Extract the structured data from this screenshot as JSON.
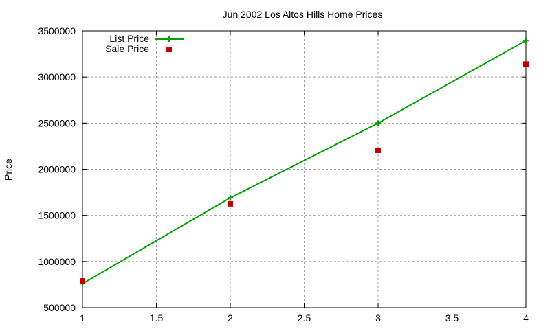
{
  "chart_data": {
    "type": "line",
    "title": "Jun 2002 Los Altos Hills Home Prices",
    "xlabel": "",
    "ylabel": "Price",
    "x": [
      1,
      2,
      3,
      4
    ],
    "xlim": [
      1,
      4
    ],
    "ylim": [
      500000,
      3500000
    ],
    "xticks": [
      "1",
      "1.5",
      "2",
      "2.5",
      "3",
      "3.5",
      "4"
    ],
    "yticks": [
      "500000",
      "1000000",
      "1500000",
      "2000000",
      "2500000",
      "3000000",
      "3500000"
    ],
    "grid": true,
    "legend_position": "top-left",
    "series": [
      {
        "name": "List Price",
        "style": "line+cross",
        "color": "#00a000",
        "values": [
          760000,
          1690000,
          2500000,
          3395000
        ]
      },
      {
        "name": "Sale Price",
        "style": "square-markers",
        "color": "#c00000",
        "values": [
          790000,
          1625000,
          2205000,
          3140000
        ]
      }
    ]
  }
}
